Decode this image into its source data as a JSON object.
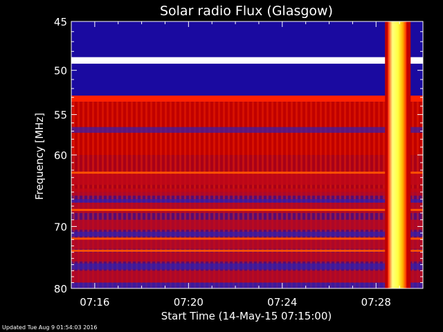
{
  "chart_data": {
    "type": "heatmap",
    "title": "Solar radio Flux (Glasgow)",
    "xlabel": "Start Time (14-May-15 07:15:00)",
    "ylabel": "Frequency [MHz]",
    "x_ticks": [
      "07:16",
      "07:20",
      "07:24",
      "07:28"
    ],
    "x_tick_minutes": [
      1,
      5,
      9,
      13
    ],
    "xlim_minutes": [
      0,
      15
    ],
    "y_ticks": [
      45,
      50,
      55,
      60,
      70,
      80
    ],
    "ylim": [
      45,
      80
    ],
    "y_scale": "log",
    "color_scale": [
      "#1a0aa0",
      "#c00000",
      "#ff2000",
      "#ffff40",
      "#ffffff"
    ],
    "background": "#000000",
    "bands": [
      {
        "f_from": 45,
        "f_to": 48.6,
        "level": "low"
      },
      {
        "f_from": 48.6,
        "f_to": 49.3,
        "level": "very_high"
      },
      {
        "f_from": 49.3,
        "f_to": 52.8,
        "level": "low"
      },
      {
        "f_from": 52.8,
        "f_to": 53.5,
        "level": "high"
      },
      {
        "f_from": 53.5,
        "f_to": 60,
        "level": "medium"
      },
      {
        "f_from": 60,
        "f_to": 65,
        "level": "medium_mixed"
      },
      {
        "f_from": 65,
        "f_to": 80,
        "level": "mixed"
      }
    ],
    "event": {
      "start_minute": 13.5,
      "end_minute": 14.3,
      "level": "very_high"
    }
  },
  "footer": "Updated Tue Aug  9 01:54:03 2016"
}
